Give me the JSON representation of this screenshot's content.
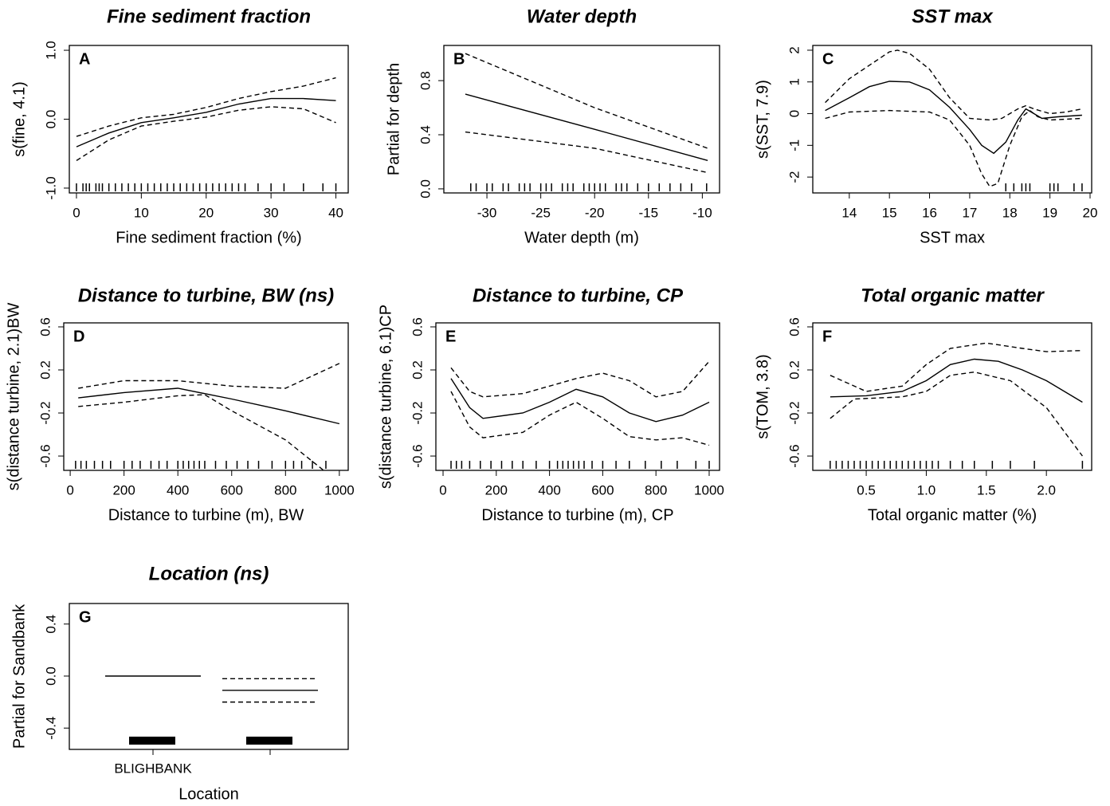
{
  "chart_data": [
    {
      "type": "line",
      "title": "Fine sediment fraction",
      "label": "A",
      "xlabel": "Fine sediment fraction (%)",
      "ylabel": "s(fine, 4.1)",
      "xlim": [
        -1.1,
        41.9
      ],
      "ylim": [
        -1.07,
        1.07
      ],
      "xticks": [
        0,
        10,
        20,
        30,
        40
      ],
      "yticks": [
        {
          "value": -1,
          "label": "-1.0"
        },
        {
          "value": 0,
          "label": "0.0"
        },
        {
          "value": 1,
          "label": "1.0"
        }
      ],
      "series": [
        {
          "style": "solid",
          "color": "#000000",
          "x": [
            0,
            5,
            10,
            15,
            20,
            25,
            30,
            35,
            40
          ],
          "values": [
            -0.4,
            -0.2,
            -0.05,
            0.02,
            0.1,
            0.22,
            0.3,
            0.3,
            0.27
          ]
        },
        {
          "style": "dashed",
          "color": "#000000",
          "x": [
            0,
            5,
            10,
            15,
            20,
            25,
            30,
            35,
            40
          ],
          "values": [
            -0.25,
            -0.1,
            0.02,
            0.07,
            0.17,
            0.3,
            0.4,
            0.48,
            0.6
          ]
        },
        {
          "style": "dashed",
          "color": "#000000",
          "x": [
            0,
            5,
            10,
            15,
            20,
            25,
            30,
            35,
            40
          ],
          "values": [
            -0.6,
            -0.3,
            -0.1,
            -0.03,
            0.03,
            0.13,
            0.18,
            0.15,
            -0.05
          ]
        }
      ],
      "rug": [
        0,
        1,
        1.5,
        2,
        3,
        3.5,
        4,
        5,
        6,
        7,
        8,
        9,
        10,
        11,
        12,
        13,
        14,
        15,
        16,
        17,
        18,
        19,
        20,
        21,
        22,
        23,
        24,
        25,
        26,
        28,
        30,
        32,
        35,
        38,
        40
      ]
    },
    {
      "type": "line",
      "title": "Water depth",
      "label": "B",
      "xlabel": "Water depth (m)",
      "ylabel": "Partial for depth",
      "xlim": [
        -34,
        -8.4
      ],
      "ylim": [
        -0.03,
        1.06
      ],
      "xticks": [
        -30,
        -25,
        -20,
        -15,
        -10
      ],
      "yticks": [
        {
          "value": 0,
          "label": "0.0"
        },
        0.4,
        0.8
      ],
      "series": [
        {
          "style": "solid",
          "color": "#000000",
          "x": [
            -32,
            -20,
            -9.5
          ],
          "values": [
            0.7,
            0.44,
            0.21
          ]
        },
        {
          "style": "dashed",
          "color": "#000000",
          "x": [
            -32,
            -20,
            -9.5
          ],
          "values": [
            1.0,
            0.6,
            0.3
          ]
        },
        {
          "style": "dashed",
          "color": "#000000",
          "x": [
            -32,
            -20,
            -9.5
          ],
          "values": [
            0.42,
            0.3,
            0.12
          ]
        }
      ],
      "rug": [
        -31.5,
        -31,
        -30,
        -29.5,
        -28.5,
        -28,
        -27,
        -26.5,
        -26,
        -25,
        -24.5,
        -24,
        -23,
        -22.5,
        -22,
        -21,
        -20.5,
        -20,
        -19.5,
        -19,
        -18,
        -17.5,
        -17,
        -16,
        -15,
        -14,
        -13,
        -12,
        -11,
        -9.6
      ]
    },
    {
      "type": "line",
      "title": "SST max",
      "label": "C",
      "xlabel": "SST max",
      "ylabel": "s(SST, 7.9)",
      "xlim": [
        13.09,
        20.04
      ],
      "ylim": [
        -2.5,
        2.15
      ],
      "xticks": [
        14,
        15,
        16,
        17,
        18,
        19,
        20
      ],
      "yticks": [
        -2,
        -1,
        0,
        1,
        2
      ],
      "series": [
        {
          "style": "solid",
          "color": "#000000",
          "x": [
            13.4,
            14,
            14.5,
            15,
            15.5,
            16,
            16.5,
            17,
            17.3,
            17.6,
            17.9,
            18.2,
            18.4,
            18.6,
            18.8,
            19.2,
            19.8
          ],
          "values": [
            0.1,
            0.5,
            0.85,
            1.02,
            1.0,
            0.75,
            0.2,
            -0.5,
            -1.0,
            -1.25,
            -0.9,
            -0.2,
            0.15,
            0.0,
            -0.15,
            -0.1,
            -0.05
          ]
        },
        {
          "style": "dashed",
          "color": "#000000",
          "x": [
            13.4,
            14,
            15,
            15.2,
            15.5,
            16,
            16.5,
            17,
            17.5,
            17.8,
            18.2,
            18.4,
            18.6,
            19,
            19.4,
            19.8
          ],
          "values": [
            0.35,
            1.1,
            1.95,
            2.0,
            1.9,
            1.4,
            0.5,
            -0.15,
            -0.2,
            -0.15,
            0.15,
            0.25,
            0.15,
            0.0,
            0.05,
            0.15
          ]
        },
        {
          "style": "dashed",
          "color": "#000000",
          "x": [
            13.4,
            14,
            15,
            16,
            16.5,
            17,
            17.3,
            17.5,
            17.7,
            18,
            18.3,
            18.5,
            18.7,
            19,
            19.8
          ],
          "values": [
            -0.15,
            0.05,
            0.1,
            0.05,
            -0.2,
            -1.0,
            -1.9,
            -2.3,
            -2.2,
            -1.0,
            -0.1,
            0.1,
            -0.1,
            -0.2,
            -0.15
          ]
        }
      ],
      "rug": [
        17.9,
        18.1,
        18.3,
        18.4,
        18.5,
        19.0,
        19.1,
        19.2,
        19.6,
        19.8
      ]
    },
    {
      "type": "line",
      "title": "Distance to turbine, BW (ns)",
      "label": "D",
      "xlabel": "Distance to turbine (m), BW",
      "ylabel": "s(distance turbine, 2.1)BW",
      "xlim": [
        -24,
        1033
      ],
      "ylim": [
        -0.733,
        0.637
      ],
      "xticks": [
        0,
        200,
        400,
        600,
        800,
        1000
      ],
      "yticks": [
        -0.6,
        -0.2,
        0.2,
        0.6
      ],
      "series": [
        {
          "style": "solid",
          "color": "#000000",
          "x": [
            30,
            200,
            400,
            600,
            800,
            1000
          ],
          "values": [
            -0.06,
            -0.01,
            0.03,
            -0.07,
            -0.18,
            -0.3
          ]
        },
        {
          "style": "dashed",
          "color": "#000000",
          "x": [
            30,
            200,
            400,
            600,
            800,
            1000
          ],
          "values": [
            0.03,
            0.1,
            0.1,
            0.05,
            0.03,
            0.26
          ]
        },
        {
          "style": "dashed",
          "color": "#000000",
          "x": [
            30,
            200,
            400,
            500,
            600,
            800,
            950
          ],
          "values": [
            -0.14,
            -0.1,
            -0.04,
            -0.03,
            -0.18,
            -0.45,
            -0.75
          ]
        }
      ],
      "rug": [
        20,
        40,
        60,
        90,
        120,
        150,
        200,
        230,
        260,
        300,
        330,
        360,
        400,
        420,
        440,
        460,
        480,
        500,
        540,
        580,
        620,
        660,
        700,
        750,
        800,
        830,
        860,
        900,
        950
      ]
    },
    {
      "type": "line",
      "title": "Distance to turbine, CP",
      "label": "E",
      "xlabel": "Distance to turbine (m), CP",
      "ylabel": "s(distance turbine, 6.1)CP",
      "xlim": [
        -27,
        1039
      ],
      "ylim": [
        -0.733,
        0.637
      ],
      "xticks": [
        0,
        200,
        400,
        600,
        800,
        1000
      ],
      "yticks": [
        -0.6,
        -0.2,
        0.2,
        0.6
      ],
      "series": [
        {
          "style": "solid",
          "color": "#000000",
          "x": [
            30,
            100,
            150,
            300,
            400,
            500,
            600,
            700,
            800,
            900,
            1000
          ],
          "values": [
            0.12,
            -0.15,
            -0.25,
            -0.2,
            -0.1,
            0.02,
            -0.05,
            -0.2,
            -0.28,
            -0.22,
            -0.1
          ]
        },
        {
          "style": "dashed",
          "color": "#000000",
          "x": [
            30,
            100,
            150,
            300,
            400,
            500,
            600,
            700,
            800,
            900,
            1000
          ],
          "values": [
            0.22,
            0.0,
            -0.05,
            -0.02,
            0.05,
            0.12,
            0.17,
            0.1,
            -0.05,
            0.0,
            0.28
          ]
        },
        {
          "style": "dashed",
          "color": "#000000",
          "x": [
            30,
            100,
            150,
            300,
            400,
            500,
            600,
            700,
            800,
            900,
            1000
          ],
          "values": [
            0.0,
            -0.33,
            -0.43,
            -0.38,
            -0.22,
            -0.1,
            -0.25,
            -0.42,
            -0.45,
            -0.43,
            -0.5
          ]
        }
      ],
      "rug": [
        30,
        50,
        70,
        100,
        140,
        180,
        220,
        260,
        300,
        350,
        400,
        430,
        450,
        470,
        490,
        510,
        530,
        560,
        600,
        650,
        700,
        760,
        820,
        880,
        950,
        1000
      ]
    },
    {
      "type": "line",
      "title": "Total organic matter",
      "label": "F",
      "xlabel": "Total organic matter (%)",
      "ylabel": "s(TOM, 3.8)",
      "xlim": [
        0.055,
        2.377
      ],
      "ylim": [
        -0.733,
        0.637
      ],
      "xticks": [
        0.5,
        {
          "value": 1,
          "label": "1.0"
        },
        1.5,
        {
          "value": 2,
          "label": "2.0"
        }
      ],
      "yticks": [
        -0.6,
        -0.2,
        0.2,
        0.6
      ],
      "series": [
        {
          "style": "solid",
          "color": "#000000",
          "x": [
            0.2,
            0.5,
            0.8,
            1.0,
            1.2,
            1.4,
            1.6,
            1.8,
            2.0,
            2.3
          ],
          "values": [
            -0.05,
            -0.04,
            0.0,
            0.1,
            0.25,
            0.3,
            0.28,
            0.2,
            0.1,
            -0.1
          ]
        },
        {
          "style": "dashed",
          "color": "#000000",
          "x": [
            0.2,
            0.5,
            0.8,
            1.0,
            1.2,
            1.5,
            1.8,
            2.0,
            2.3
          ],
          "values": [
            0.15,
            0.0,
            0.05,
            0.25,
            0.4,
            0.45,
            0.4,
            0.37,
            0.38
          ]
        },
        {
          "style": "dashed",
          "color": "#000000",
          "x": [
            0.2,
            0.4,
            0.8,
            1.0,
            1.2,
            1.4,
            1.7,
            2.0,
            2.3
          ],
          "values": [
            -0.25,
            -0.07,
            -0.05,
            0.0,
            0.15,
            0.18,
            0.1,
            -0.15,
            -0.6
          ]
        }
      ],
      "rug": [
        0.2,
        0.25,
        0.3,
        0.35,
        0.4,
        0.45,
        0.5,
        0.55,
        0.6,
        0.65,
        0.7,
        0.75,
        0.8,
        0.85,
        0.9,
        0.95,
        1.0,
        1.05,
        1.1,
        1.2,
        1.3,
        1.4,
        1.55,
        1.7,
        1.9,
        2.3
      ]
    },
    {
      "type": "factor",
      "title": "Location (ns)",
      "label": "G",
      "xlabel": "Location",
      "ylabel": "Partial for Sandbank",
      "categories": [
        "BLIGHBANK",
        null
      ],
      "ylim": [
        -0.564,
        0.558
      ],
      "yticks": [
        -0.4,
        {
          "value": 0,
          "label": "0.0"
        },
        0.4
      ],
      "series": [
        {
          "style": "solid",
          "color": "#000000",
          "values": [
            0,
            -0.11
          ]
        },
        {
          "style": "dashed",
          "color": "#000000",
          "values": [
            null,
            -0.02
          ]
        },
        {
          "style": "dashed",
          "color": "#000000",
          "values": [
            null,
            -0.2
          ]
        }
      ]
    }
  ]
}
